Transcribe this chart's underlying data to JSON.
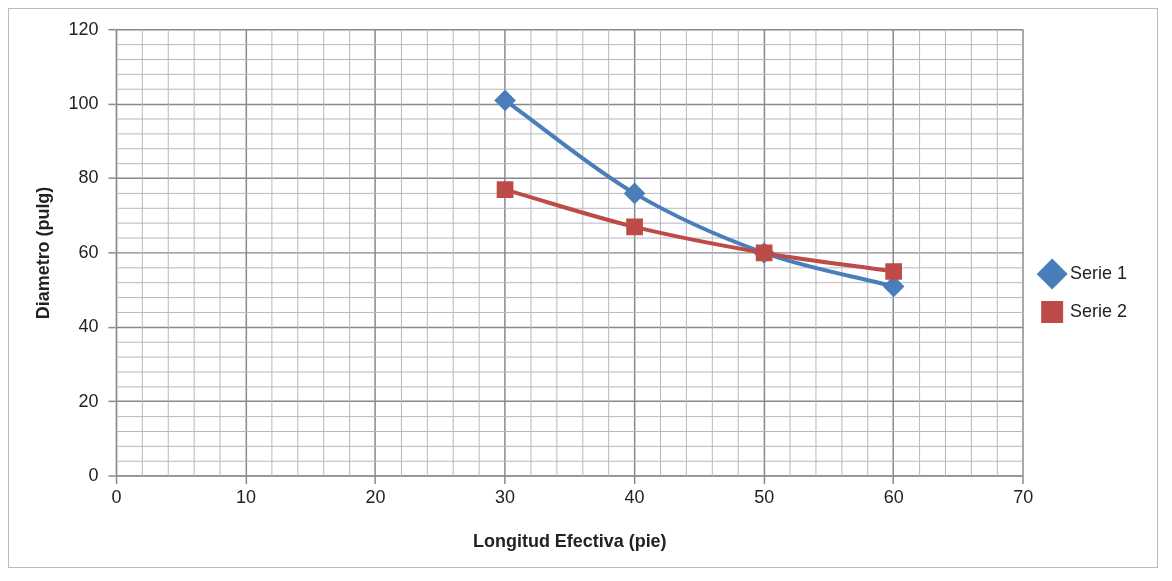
{
  "chart_data": {
    "type": "line",
    "xlabel": "Longitud Efectiva (pie)",
    "ylabel": "Diametro (pulg)",
    "x": [
      30,
      40,
      50,
      60
    ],
    "series": [
      {
        "name": "Serie 1",
        "color": "#4a7ebb",
        "marker": "diamond",
        "values": [
          101,
          76,
          60,
          51
        ]
      },
      {
        "name": "Serie 2",
        "color": "#be4b48",
        "marker": "square",
        "values": [
          77,
          67,
          60,
          55
        ]
      }
    ],
    "xlim": [
      0,
      70
    ],
    "xticks": [
      0,
      10,
      20,
      30,
      40,
      50,
      60,
      70
    ],
    "ylim": [
      0,
      120
    ],
    "yticks": [
      0,
      20,
      40,
      60,
      80,
      100,
      120
    ],
    "grid": true,
    "legend": "right"
  }
}
